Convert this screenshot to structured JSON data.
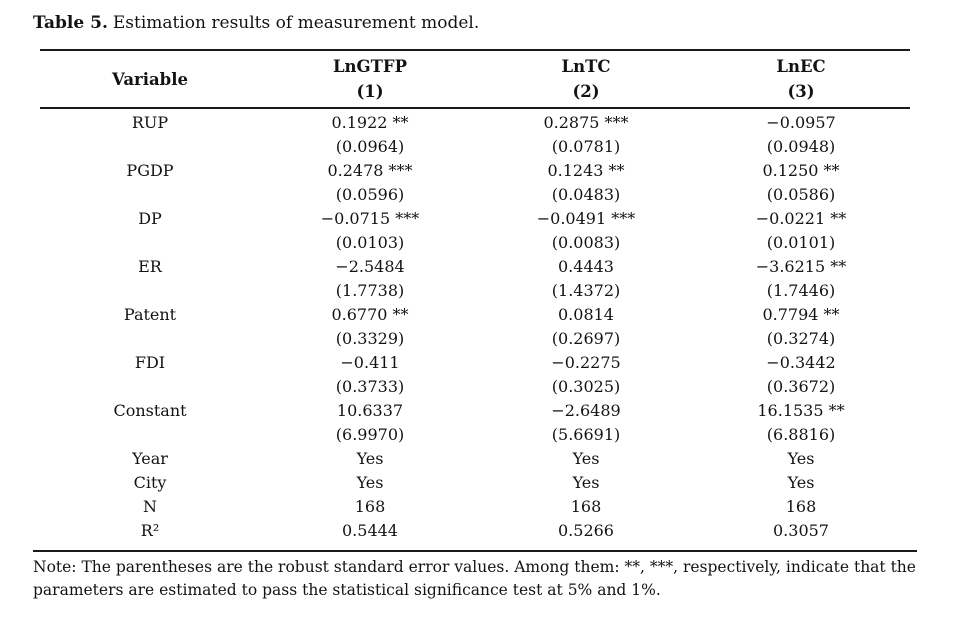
{
  "caption": {
    "label": "Table 5.",
    "text": "Estimation results of measurement model."
  },
  "table": {
    "header": {
      "variable": "Variable",
      "col1": {
        "name": "LnGTFP",
        "num": "(1)"
      },
      "col2": {
        "name": "LnTC",
        "num": "(2)"
      },
      "col3": {
        "name": "LnEC",
        "num": "(3)"
      }
    },
    "lines": [
      {
        "v": "RUP",
        "c1": "0.1922 **",
        "c2": "0.2875 ***",
        "c3": "−0.0957"
      },
      {
        "v": "",
        "c1": "(0.0964)",
        "c2": "(0.0781)",
        "c3": "(0.0948)"
      },
      {
        "v": "PGDP",
        "c1": "0.2478 ***",
        "c2": "0.1243 **",
        "c3": "0.1250 **"
      },
      {
        "v": "",
        "c1": "(0.0596)",
        "c2": "(0.0483)",
        "c3": "(0.0586)"
      },
      {
        "v": "DP",
        "c1": "−0.0715 ***",
        "c2": "−0.0491 ***",
        "c3": "−0.0221 **"
      },
      {
        "v": "",
        "c1": "(0.0103)",
        "c2": "(0.0083)",
        "c3": "(0.0101)"
      },
      {
        "v": "ER",
        "c1": "−2.5484",
        "c2": "0.4443",
        "c3": "−3.6215 **"
      },
      {
        "v": "",
        "c1": "(1.7738)",
        "c2": "(1.4372)",
        "c3": "(1.7446)"
      },
      {
        "v": "Patent",
        "c1": "0.6770 **",
        "c2": "0.0814",
        "c3": "0.7794 **"
      },
      {
        "v": "",
        "c1": "(0.3329)",
        "c2": "(0.2697)",
        "c3": "(0.3274)"
      },
      {
        "v": "FDI",
        "c1": "−0.411",
        "c2": "−0.2275",
        "c3": "−0.3442"
      },
      {
        "v": "",
        "c1": "(0.3733)",
        "c2": "(0.3025)",
        "c3": "(0.3672)"
      },
      {
        "v": "Constant",
        "c1": "10.6337",
        "c2": "−2.6489",
        "c3": "16.1535 **"
      },
      {
        "v": "",
        "c1": "(6.9970)",
        "c2": "(5.6691)",
        "c3": "(6.8816)"
      },
      {
        "v": "Year",
        "c1": "Yes",
        "c2": "Yes",
        "c3": "Yes"
      },
      {
        "v": "City",
        "c1": "Yes",
        "c2": "Yes",
        "c3": "Yes"
      },
      {
        "v": "N",
        "c1": "168",
        "c2": "168",
        "c3": "168"
      },
      {
        "v": "R²",
        "c1": "0.5444",
        "c2": "0.5266",
        "c3": "0.3057"
      }
    ]
  },
  "note": {
    "line1": "Note: The parentheses are the robust standard error values. Among them: **, ***, respectively, indicate that the",
    "line2": "parameters are estimated to pass the statistical significance test at 5% and 1%."
  },
  "colors": {
    "background": "#ffffff",
    "text": "#131313",
    "rule": "#1a1a1a"
  }
}
